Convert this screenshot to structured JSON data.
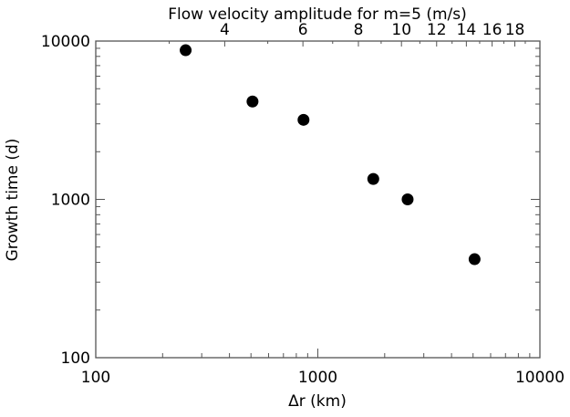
{
  "chart_data": {
    "type": "scatter",
    "title": "",
    "xlabel": "Δr (km)",
    "ylabel": "Growth time (d)",
    "top_xlabel": "Flow velocity amplitude for m=5 (m/s)",
    "xscale": "log",
    "yscale": "log",
    "xlim": [
      100,
      10000
    ],
    "ylim": [
      100,
      10000
    ],
    "x_ticks": [
      "100",
      "1000",
      "10000"
    ],
    "y_ticks": [
      "100",
      "1000",
      "10000"
    ],
    "top_ticks": [
      "4",
      "6",
      "8",
      "10",
      "12",
      "14",
      "16",
      "18"
    ],
    "top_axis_relation": "delta_r_km = 23.8 * v^2",
    "grid": false,
    "points": [
      {
        "x": 254,
        "y": 8750
      },
      {
        "x": 508,
        "y": 4150
      },
      {
        "x": 862,
        "y": 3180
      },
      {
        "x": 1777,
        "y": 1346
      },
      {
        "x": 2537,
        "y": 1000
      },
      {
        "x": 5080,
        "y": 419
      }
    ],
    "marker_color": "#000000",
    "axis_color": "#555555"
  }
}
